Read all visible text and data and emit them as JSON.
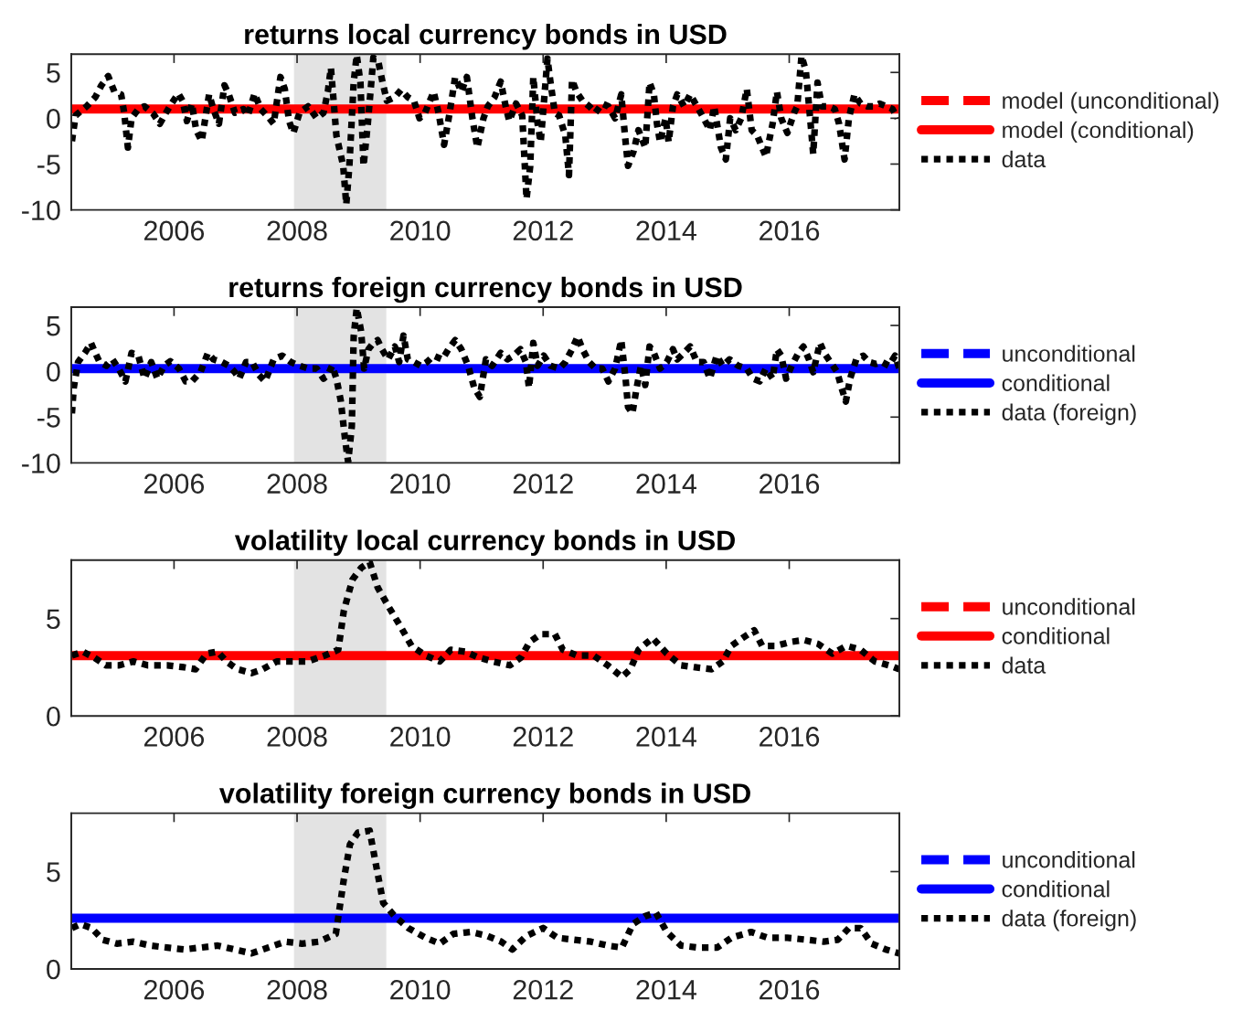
{
  "chart_data": [
    {
      "type": "line",
      "title": "returns local currency bonds in USD",
      "xlim": [
        2004.33,
        2017.79
      ],
      "xticks": [
        2006,
        2008,
        2010,
        2012,
        2014,
        2016
      ],
      "ylim": [
        -10,
        7
      ],
      "yticks": [
        -10,
        -5,
        0,
        5
      ],
      "legend": "right",
      "bands": [
        {
          "axis": "x",
          "from": 2007.95,
          "to": 2009.45,
          "color": "#e3e3e3"
        }
      ],
      "series": [
        {
          "name": "model (unconditional)",
          "color": "#ff0000",
          "line_style": "dashed"
        },
        {
          "name": "model (conditional)",
          "color": "#ff0000",
          "line_style": "solid",
          "x": [
            2004.33,
            2017.79
          ],
          "values": [
            1.0,
            1.0
          ]
        },
        {
          "name": "data",
          "color": "#000000",
          "line_style": "dotted",
          "x": [
            2004.34,
            2004.4,
            2004.58,
            2004.72,
            2004.82,
            2004.93,
            2005.03,
            2005.14,
            2005.19,
            2005.25,
            2005.31,
            2005.42,
            2005.52,
            2005.66,
            2005.77,
            2005.86,
            2005.94,
            2006.07,
            2006.14,
            2006.21,
            2006.29,
            2006.36,
            2006.45,
            2006.57,
            2006.64,
            2006.73,
            2006.82,
            2006.89,
            2006.99,
            2007.13,
            2007.2,
            2007.31,
            2007.41,
            2007.55,
            2007.62,
            2007.73,
            2007.8,
            2007.87,
            2007.94,
            2008.04,
            2008.18,
            2008.32,
            2008.43,
            2008.5,
            2008.55,
            2008.64,
            2008.75,
            2008.8,
            2008.85,
            2008.92,
            2008.97,
            2009.03,
            2009.08,
            2009.15,
            2009.24,
            2009.32,
            2009.39,
            2009.46,
            2009.59,
            2009.69,
            2009.8,
            2009.9,
            2009.99,
            2010.08,
            2010.22,
            2010.3,
            2010.39,
            2010.48,
            2010.57,
            2010.67,
            2010.76,
            2010.85,
            2010.93,
            2011.03,
            2011.1,
            2011.21,
            2011.31,
            2011.4,
            2011.45,
            2011.56,
            2011.66,
            2011.73,
            2011.79,
            2011.84,
            2011.91,
            2011.96,
            2012.07,
            2012.12,
            2012.19,
            2012.26,
            2012.36,
            2012.42,
            2012.47,
            2012.54,
            2012.64,
            2012.75,
            2012.85,
            2012.96,
            2013.06,
            2013.17,
            2013.27,
            2013.33,
            2013.38,
            2013.47,
            2013.55,
            2013.66,
            2013.73,
            2013.8,
            2013.85,
            2013.9,
            2013.99,
            2014.04,
            2014.11,
            2014.18,
            2014.29,
            2014.39,
            2014.5,
            2014.61,
            2014.71,
            2014.78,
            2014.89,
            2014.97,
            2015.04,
            2015.13,
            2015.22,
            2015.31,
            2015.39,
            2015.48,
            2015.62,
            2015.73,
            2015.8,
            2015.87,
            2015.97,
            2016.08,
            2016.13,
            2016.2,
            2016.27,
            2016.34,
            2016.39,
            2016.46,
            2016.53,
            2016.64,
            2016.74,
            2016.81,
            2016.9,
            2016.97,
            2017.06,
            2017.16,
            2017.27,
            2017.37,
            2017.47,
            2017.58,
            2017.68,
            2017.76
          ],
          "values": [
            -2.5,
            0.3,
            1.3,
            2.3,
            3.6,
            4.6,
            2.9,
            2.6,
            0.6,
            -3.2,
            0.0,
            1.0,
            1.3,
            0.5,
            -0.6,
            0.5,
            1.4,
            2.7,
            1.9,
            -0.3,
            1.6,
            -1.3,
            -2.5,
            2.6,
            1.0,
            -0.6,
            3.6,
            2.6,
            0.6,
            1.0,
            0.3,
            2.7,
            1.0,
            0.0,
            -0.6,
            4.5,
            3.2,
            -0.3,
            -1.6,
            0.6,
            1.3,
            0.0,
            0.6,
            2.9,
            5.5,
            -1.9,
            -5.2,
            -9.4,
            -5.2,
            3.9,
            6.9,
            3.9,
            -5.2,
            -0.6,
            6.6,
            6.2,
            3.9,
            1.9,
            2.3,
            3.1,
            2.3,
            1.9,
            0.0,
            0.6,
            2.9,
            0.6,
            -2.9,
            0.6,
            4.5,
            2.9,
            4.5,
            0.0,
            -3.2,
            0.0,
            1.3,
            2.3,
            4.0,
            1.0,
            -0.3,
            1.6,
            0.3,
            -8.8,
            -5.2,
            4.5,
            -0.6,
            -2.6,
            6.5,
            3.9,
            0.6,
            0.3,
            -1.9,
            -6.2,
            4.2,
            2.9,
            1.9,
            1.3,
            0.6,
            1.6,
            1.3,
            0.0,
            2.6,
            -1.9,
            -5.2,
            -3.6,
            -1.3,
            -3.2,
            3.9,
            2.6,
            -0.6,
            -2.6,
            0.0,
            -2.6,
            1.3,
            2.6,
            1.3,
            2.6,
            1.3,
            0.0,
            -1.3,
            1.3,
            -3.2,
            -4.5,
            0.0,
            -1.3,
            0.0,
            3.2,
            -1.3,
            -1.9,
            -4.2,
            -0.6,
            2.9,
            0.0,
            -1.6,
            0.6,
            1.3,
            6.8,
            5.2,
            0.0,
            -3.9,
            3.9,
            1.3,
            1.3,
            1.0,
            -0.6,
            -4.5,
            0.0,
            2.6,
            1.6,
            1.3,
            1.3,
            1.6,
            1.3,
            1.0,
            0.0
          ]
        }
      ]
    },
    {
      "type": "line",
      "title": "returns foreign currency bonds in USD",
      "xlim": [
        2004.33,
        2017.79
      ],
      "xticks": [
        2006,
        2008,
        2010,
        2012,
        2014,
        2016
      ],
      "ylim": [
        -10,
        7
      ],
      "yticks": [
        -10,
        -5,
        0,
        5
      ],
      "legend": "right",
      "bands": [
        {
          "axis": "x",
          "from": 2007.95,
          "to": 2009.45,
          "color": "#e3e3e3"
        }
      ],
      "series": [
        {
          "name": "unconditional",
          "color": "#0000ff",
          "line_style": "dashed"
        },
        {
          "name": "conditional",
          "color": "#0000ff",
          "line_style": "solid",
          "x": [
            2004.33,
            2017.79
          ],
          "values": [
            0.3,
            0.3
          ]
        },
        {
          "name": "data (foreign)",
          "color": "#000000",
          "line_style": "dotted",
          "x": [
            2004.34,
            2004.37,
            2004.44,
            2004.55,
            2004.65,
            2004.72,
            2004.79,
            2004.9,
            2005.0,
            2005.1,
            2005.21,
            2005.31,
            2005.42,
            2005.52,
            2005.63,
            2005.73,
            2005.84,
            2005.94,
            2006.08,
            2006.19,
            2006.29,
            2006.43,
            2006.55,
            2006.64,
            2006.78,
            2006.89,
            2006.99,
            2007.06,
            2007.17,
            2007.27,
            2007.38,
            2007.48,
            2007.62,
            2007.76,
            2007.9,
            2008.04,
            2008.18,
            2008.32,
            2008.43,
            2008.5,
            2008.57,
            2008.64,
            2008.71,
            2008.78,
            2008.83,
            2008.89,
            2008.92,
            2008.97,
            2009.04,
            2009.09,
            2009.16,
            2009.24,
            2009.31,
            2009.38,
            2009.48,
            2009.59,
            2009.66,
            2009.73,
            2009.8,
            2009.9,
            2010.01,
            2010.11,
            2010.22,
            2010.36,
            2010.46,
            2010.57,
            2010.67,
            2010.78,
            2010.88,
            2010.97,
            2011.07,
            2011.17,
            2011.31,
            2011.42,
            2011.52,
            2011.63,
            2011.72,
            2011.77,
            2011.84,
            2011.91,
            2012.01,
            2012.12,
            2012.26,
            2012.36,
            2012.47,
            2012.56,
            2012.64,
            2012.75,
            2012.85,
            2012.96,
            2013.06,
            2013.17,
            2013.27,
            2013.34,
            2013.38,
            2013.45,
            2013.52,
            2013.59,
            2013.66,
            2013.73,
            2013.8,
            2013.9,
            2014.01,
            2014.11,
            2014.18,
            2014.29,
            2014.39,
            2014.5,
            2014.61,
            2014.71,
            2014.82,
            2014.92,
            2015.03,
            2015.17,
            2015.31,
            2015.41,
            2015.52,
            2015.62,
            2015.73,
            2015.8,
            2015.87,
            2015.95,
            2016.04,
            2016.15,
            2016.23,
            2016.32,
            2016.39,
            2016.5,
            2016.57,
            2016.67,
            2016.78,
            2016.85,
            2016.92,
            2016.99,
            2017.09,
            2017.2,
            2017.3,
            2017.41,
            2017.51,
            2017.62,
            2017.72,
            2017.79
          ],
          "values": [
            -4.6,
            -1.8,
            1.0,
            2.0,
            3.1,
            2.0,
            1.0,
            0.6,
            1.3,
            0.3,
            -1.1,
            2.0,
            1.7,
            -0.8,
            1.0,
            -0.8,
            0.6,
            1.1,
            0.3,
            -1.1,
            -1.1,
            -0.1,
            2.0,
            1.3,
            1.0,
            0.6,
            -0.1,
            -0.8,
            1.0,
            1.0,
            -0.4,
            -1.1,
            1.3,
            1.7,
            1.0,
            0.6,
            0.3,
            0.3,
            -0.8,
            -0.4,
            0.6,
            -0.8,
            -3.2,
            -7.4,
            -9.9,
            -6.0,
            3.8,
            6.9,
            4.4,
            0.3,
            2.4,
            3.1,
            3.4,
            2.4,
            1.3,
            2.7,
            1.0,
            3.9,
            1.3,
            1.0,
            0.6,
            1.0,
            1.7,
            1.3,
            2.4,
            3.4,
            2.4,
            0.6,
            -1.8,
            -2.8,
            1.3,
            0.6,
            2.0,
            1.3,
            1.7,
            2.4,
            1.0,
            -1.8,
            3.1,
            0.6,
            1.7,
            0.6,
            0.3,
            1.0,
            2.4,
            3.8,
            2.4,
            1.0,
            0.3,
            0.3,
            -1.1,
            0.3,
            3.4,
            -0.8,
            -3.9,
            -4.6,
            -1.8,
            0.6,
            -1.5,
            2.7,
            2.0,
            0.3,
            1.0,
            2.4,
            1.3,
            2.0,
            2.7,
            1.0,
            1.0,
            -0.8,
            1.7,
            0.6,
            1.3,
            0.6,
            0.3,
            -0.8,
            -1.1,
            0.3,
            -0.8,
            2.4,
            1.7,
            -0.8,
            0.6,
            2.0,
            2.7,
            1.3,
            -0.1,
            3.1,
            2.0,
            1.0,
            -0.1,
            -1.8,
            -3.3,
            -0.8,
            1.3,
            1.7,
            1.0,
            0.8,
            1.0,
            0.6,
            1.7,
            0.3
          ]
        }
      ]
    },
    {
      "type": "line",
      "title": "volatility local currency bonds in USD",
      "xlim": [
        2004.33,
        2017.79
      ],
      "xticks": [
        2006,
        2008,
        2010,
        2012,
        2014,
        2016
      ],
      "ylim": [
        0,
        8
      ],
      "yticks": [
        0,
        5
      ],
      "legend": "right",
      "bands": [
        {
          "axis": "x",
          "from": 2007.95,
          "to": 2009.45,
          "color": "#e3e3e3"
        }
      ],
      "series": [
        {
          "name": "unconditional",
          "color": "#ff0000",
          "line_style": "dashed"
        },
        {
          "name": "conditional",
          "color": "#ff0000",
          "line_style": "solid",
          "x": [
            2004.33,
            2017.79
          ],
          "values": [
            3.1,
            3.1
          ]
        },
        {
          "name": "data",
          "color": "#000000",
          "line_style": "dotted",
          "x": [
            2004.34,
            2004.52,
            2004.7,
            2004.89,
            2005.11,
            2005.34,
            2005.57,
            2005.89,
            2006.16,
            2006.35,
            2006.53,
            2006.71,
            2006.85,
            2007.03,
            2007.26,
            2007.44,
            2007.67,
            2007.9,
            2008.17,
            2008.45,
            2008.67,
            2008.76,
            2008.9,
            2009.04,
            2009.18,
            2009.31,
            2009.49,
            2009.68,
            2009.86,
            2010.09,
            2010.32,
            2010.5,
            2010.73,
            2010.95,
            2011.18,
            2011.46,
            2011.64,
            2011.78,
            2011.96,
            2012.19,
            2012.32,
            2012.55,
            2012.82,
            2013.05,
            2013.28,
            2013.42,
            2013.55,
            2013.78,
            2014.01,
            2014.24,
            2014.47,
            2014.74,
            2014.92,
            2015.06,
            2015.24,
            2015.43,
            2015.56,
            2015.79,
            2016.02,
            2016.24,
            2016.47,
            2016.7,
            2016.93,
            2017.16,
            2017.39,
            2017.62,
            2017.79
          ],
          "values": [
            3.1,
            3.3,
            3.0,
            2.6,
            2.6,
            2.8,
            2.6,
            2.6,
            2.5,
            2.4,
            3.2,
            3.3,
            2.8,
            2.4,
            2.2,
            2.4,
            2.8,
            2.8,
            2.8,
            3.1,
            3.4,
            5.4,
            7.0,
            7.6,
            7.9,
            6.6,
            5.6,
            4.6,
            3.6,
            3.1,
            2.8,
            3.4,
            3.3,
            3.0,
            2.8,
            2.6,
            3.0,
            3.8,
            4.2,
            4.2,
            3.4,
            3.1,
            3.1,
            2.6,
            2.0,
            2.4,
            3.4,
            4.0,
            3.2,
            2.6,
            2.5,
            2.4,
            2.8,
            3.6,
            4.0,
            4.4,
            3.6,
            3.6,
            3.8,
            3.9,
            3.7,
            3.2,
            3.6,
            3.4,
            2.8,
            2.6,
            2.4
          ]
        }
      ]
    },
    {
      "type": "line",
      "title": "volatility foreign currency bonds in USD",
      "xlim": [
        2004.33,
        2017.79
      ],
      "xticks": [
        2006,
        2008,
        2010,
        2012,
        2014,
        2016
      ],
      "ylim": [
        0,
        8
      ],
      "yticks": [
        0,
        5
      ],
      "legend": "right",
      "bands": [
        {
          "axis": "x",
          "from": 2007.95,
          "to": 2009.45,
          "color": "#e3e3e3"
        }
      ],
      "series": [
        {
          "name": "unconditional",
          "color": "#0000ff",
          "line_style": "dashed"
        },
        {
          "name": "conditional",
          "color": "#0000ff",
          "line_style": "solid",
          "x": [
            2004.33,
            2017.79
          ],
          "values": [
            2.6,
            2.6
          ]
        },
        {
          "name": "data (foreign)",
          "color": "#000000",
          "line_style": "dotted",
          "x": [
            2004.34,
            2004.48,
            2004.66,
            2004.84,
            2005.07,
            2005.34,
            2005.62,
            2005.89,
            2006.16,
            2006.44,
            2006.71,
            2006.99,
            2007.26,
            2007.53,
            2007.81,
            2008.08,
            2008.35,
            2008.63,
            2008.76,
            2008.86,
            2008.99,
            2009.18,
            2009.28,
            2009.4,
            2009.59,
            2009.81,
            2010.09,
            2010.32,
            2010.54,
            2010.82,
            2011.09,
            2011.32,
            2011.5,
            2011.73,
            2012.0,
            2012.23,
            2012.51,
            2012.78,
            2013.05,
            2013.28,
            2013.46,
            2013.65,
            2013.83,
            2014.01,
            2014.24,
            2014.51,
            2014.83,
            2015.06,
            2015.38,
            2015.65,
            2015.97,
            2016.28,
            2016.56,
            2016.79,
            2016.97,
            2017.16,
            2017.34,
            2017.57,
            2017.79
          ],
          "values": [
            2.1,
            2.3,
            2.1,
            1.5,
            1.3,
            1.4,
            1.2,
            1.1,
            1.0,
            1.1,
            1.2,
            1.0,
            0.8,
            1.1,
            1.4,
            1.3,
            1.4,
            1.8,
            4.6,
            6.4,
            7.0,
            7.1,
            5.4,
            3.4,
            2.7,
            2.1,
            1.6,
            1.3,
            1.8,
            1.9,
            1.7,
            1.4,
            1.0,
            1.7,
            2.1,
            1.6,
            1.5,
            1.4,
            1.2,
            1.1,
            2.3,
            2.7,
            2.9,
            1.9,
            1.2,
            1.1,
            1.1,
            1.6,
            1.9,
            1.6,
            1.6,
            1.5,
            1.4,
            1.5,
            2.1,
            2.1,
            1.3,
            1.0,
            0.8
          ]
        }
      ]
    }
  ]
}
